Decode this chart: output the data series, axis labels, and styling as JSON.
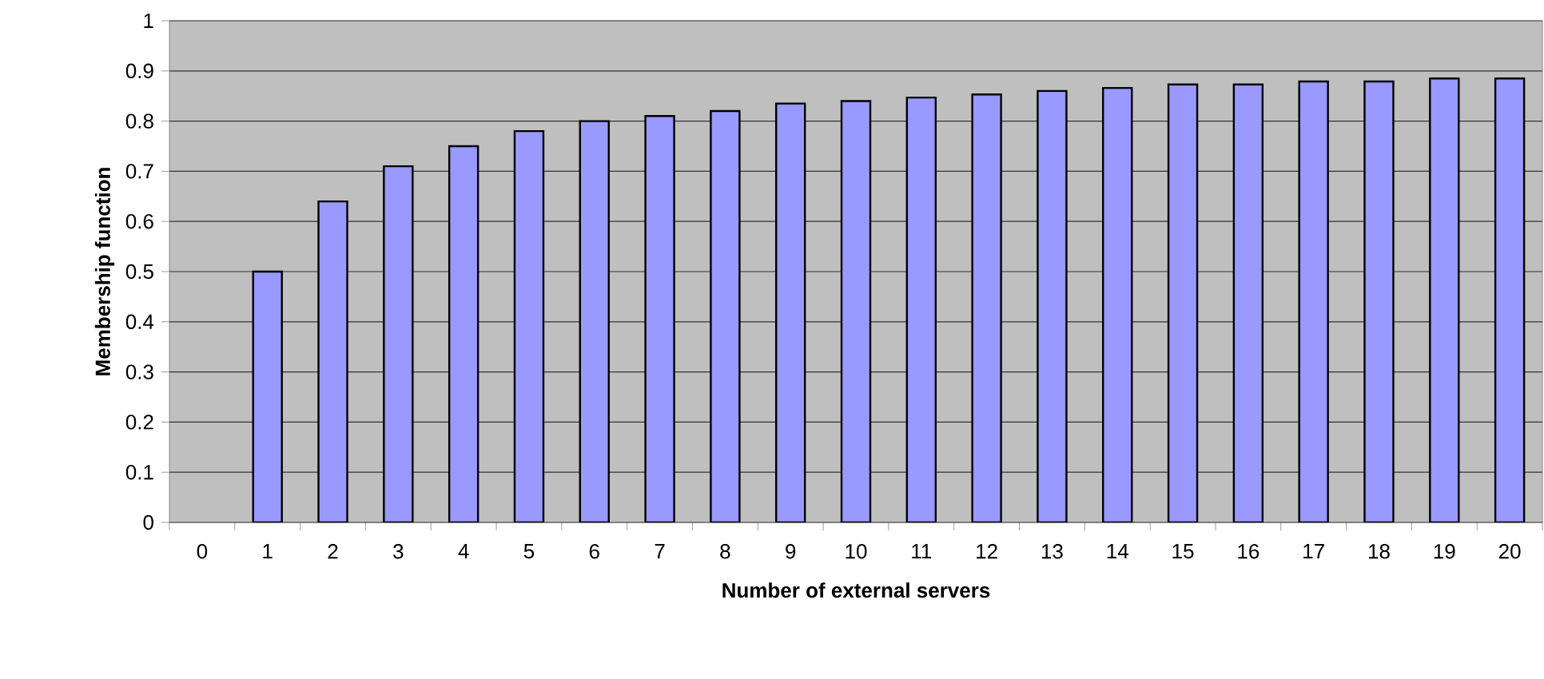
{
  "chart_data": {
    "type": "bar",
    "xlabel": "Number of external servers",
    "ylabel": "Membership function",
    "categories": [
      "0",
      "1",
      "2",
      "3",
      "4",
      "5",
      "6",
      "7",
      "8",
      "9",
      "10",
      "11",
      "12",
      "13",
      "14",
      "15",
      "16",
      "17",
      "18",
      "19",
      "20"
    ],
    "values": [
      null,
      0.5,
      0.64,
      0.71,
      0.75,
      0.78,
      0.8,
      0.81,
      0.82,
      0.835,
      0.84,
      0.847,
      0.853,
      0.86,
      0.866,
      0.873,
      0.873,
      0.879,
      0.879,
      0.885,
      0.885
    ],
    "color": "#9999ff",
    "ylim": [
      0,
      1
    ],
    "yticks": [
      0,
      0.1,
      0.2,
      0.3,
      0.4,
      0.5,
      0.6,
      0.7,
      0.8,
      0.9,
      1
    ],
    "grid": "y"
  }
}
